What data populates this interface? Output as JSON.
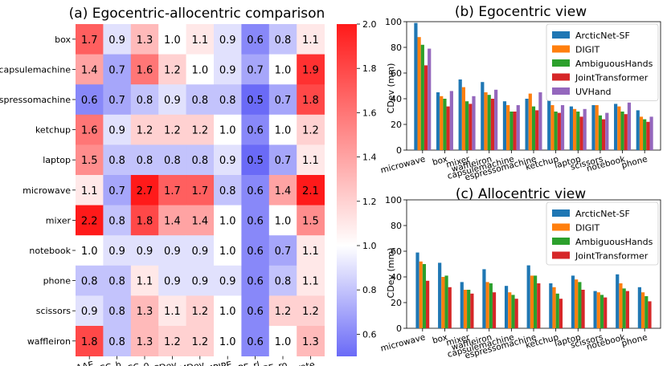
{
  "chart_data": [
    {
      "type": "heatmap",
      "title": "(a) Egocentric-allocentric comparison",
      "rows": [
        "box",
        "capsulemachine",
        "espressomachine",
        "ketchup",
        "laptop",
        "microwave",
        "mixer",
        "notebook",
        "phone",
        "scissors",
        "waffleiron"
      ],
      "columns": [
        "AAE",
        "ACC_h",
        "ACC_o",
        "CDev",
        "MDev",
        "MPJPE",
        "MRRPE_rl",
        "MRRPE_ro",
        "success_rate"
      ],
      "values": [
        [
          1.7,
          0.9,
          1.3,
          1.0,
          1.1,
          0.9,
          0.6,
          0.8,
          1.1
        ],
        [
          1.4,
          0.7,
          1.6,
          1.2,
          1.0,
          0.9,
          0.7,
          1.0,
          1.9
        ],
        [
          0.6,
          0.7,
          0.8,
          0.9,
          0.8,
          0.8,
          0.5,
          0.7,
          1.8
        ],
        [
          1.6,
          0.9,
          1.2,
          1.2,
          1.2,
          1.0,
          0.6,
          1.0,
          1.2
        ],
        [
          1.5,
          0.8,
          0.8,
          0.8,
          0.8,
          0.9,
          0.5,
          0.7,
          1.1
        ],
        [
          1.1,
          0.7,
          2.7,
          1.7,
          1.7,
          0.8,
          0.6,
          1.4,
          2.1
        ],
        [
          2.2,
          0.8,
          1.8,
          1.4,
          1.4,
          1.0,
          0.6,
          1.0,
          1.5
        ],
        [
          1.0,
          0.9,
          0.9,
          0.9,
          0.9,
          1.0,
          0.6,
          0.7,
          1.1
        ],
        [
          0.8,
          0.8,
          1.1,
          0.9,
          0.9,
          0.9,
          0.6,
          0.8,
          1.1
        ],
        [
          0.9,
          0.8,
          1.3,
          1.1,
          1.2,
          1.0,
          0.6,
          1.2,
          1.2
        ],
        [
          1.8,
          0.8,
          1.3,
          1.2,
          1.2,
          1.0,
          0.6,
          1.0,
          1.3
        ]
      ],
      "colorbar": {
        "range": [
          0.5,
          2.0
        ],
        "ticks": [
          "0.6",
          "0.8",
          "1.0",
          "1.2",
          "1.4",
          "1.6",
          "1.8",
          "2.0"
        ],
        "low_color": "#6a6af7",
        "mid_color": "#ffffff",
        "high_color": "#ff1a1a"
      }
    },
    {
      "type": "bar",
      "title": "(b) Egocentric view",
      "ylabel": "CDev (mm)",
      "ylim": [
        0,
        100
      ],
      "yticks": [
        "0",
        "20",
        "40",
        "60",
        "80",
        "100"
      ],
      "legend": "top-right",
      "categories": [
        "microwave",
        "box",
        "mixer",
        "waffleiron",
        "capsulemachine",
        "espressomachine",
        "ketchup",
        "laptop",
        "scissors",
        "notebook",
        "phone"
      ],
      "series": [
        {
          "name": "ArcticNet-SF",
          "color": "#1f77b4",
          "values": [
            99,
            45,
            55,
            53,
            38,
            40,
            39,
            34,
            35,
            36,
            31
          ]
        },
        {
          "name": "DIGIT",
          "color": "#ff7f0e",
          "values": [
            88,
            42,
            49,
            45,
            35,
            44,
            35,
            32,
            35,
            34,
            26
          ]
        },
        {
          "name": "AmbiguousHands",
          "color": "#2ca02c",
          "values": [
            82,
            40,
            38,
            43,
            30,
            34,
            30,
            30,
            27,
            30,
            24
          ]
        },
        {
          "name": "JointTransformer",
          "color": "#d62728",
          "values": [
            66,
            34,
            36,
            40,
            30,
            31,
            29,
            26,
            24,
            28,
            22
          ]
        },
        {
          "name": "UVHand",
          "color": "#9467bd",
          "values": [
            79,
            46,
            42,
            47,
            35,
            45,
            35,
            32,
            29,
            37,
            26
          ]
        }
      ]
    },
    {
      "type": "bar",
      "title": "(c) Allocentric view",
      "ylabel": "CDev (mm)",
      "ylim": [
        0,
        100
      ],
      "yticks": [
        "0",
        "20",
        "40",
        "60",
        "80",
        "100"
      ],
      "legend": "top-right",
      "categories": [
        "microwave",
        "box",
        "mixer",
        "waffleiron",
        "capsulemachine",
        "espressomachine",
        "ketchup",
        "laptop",
        "scissors",
        "notebook",
        "phone"
      ],
      "series": [
        {
          "name": "ArcticNet-SF",
          "color": "#1f77b4",
          "values": [
            59,
            51,
            36,
            46,
            33,
            49,
            35,
            41,
            29,
            42,
            32
          ]
        },
        {
          "name": "DIGIT",
          "color": "#ff7f0e",
          "values": [
            52,
            40,
            30,
            36,
            28,
            41,
            32,
            38,
            28,
            35,
            28
          ]
        },
        {
          "name": "AmbiguousHands",
          "color": "#2ca02c",
          "values": [
            50,
            41,
            30,
            35,
            26,
            41,
            27,
            36,
            26,
            31,
            25
          ]
        },
        {
          "name": "JointTransformer",
          "color": "#d62728",
          "values": [
            37,
            32,
            27,
            28,
            23,
            35,
            23,
            30,
            24,
            29,
            21
          ]
        }
      ]
    }
  ]
}
